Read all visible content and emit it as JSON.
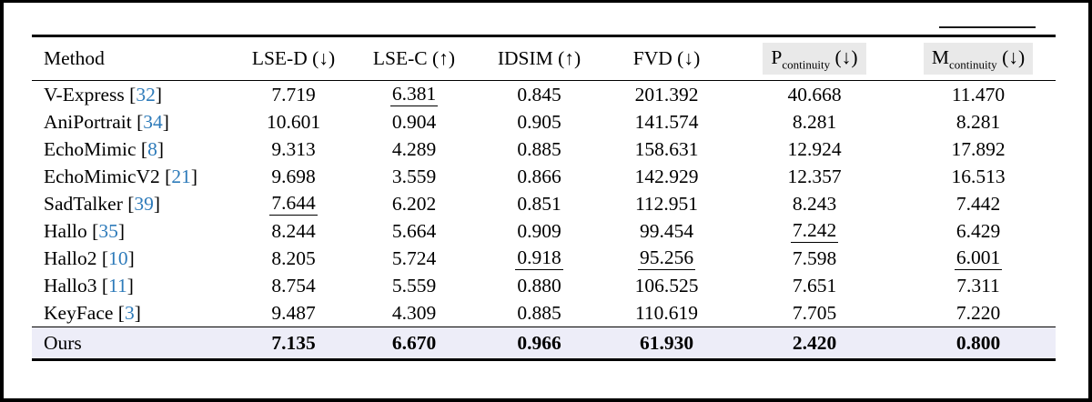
{
  "table": {
    "colors": {
      "citation": "#2e7bba",
      "header_highlight": "#e9e9e9",
      "ours_row_bg": "#ededf8",
      "rule": "#000000"
    },
    "header": {
      "method_label": "Method",
      "columns": [
        {
          "id": "lse-d",
          "base": "LSE-D",
          "sub": "",
          "dir": "↓",
          "highlight": false
        },
        {
          "id": "lse-c",
          "base": "LSE-C",
          "sub": "",
          "dir": "↑",
          "highlight": false
        },
        {
          "id": "idsim",
          "base": "IDSIM",
          "sub": "",
          "dir": "↑",
          "highlight": false
        },
        {
          "id": "fvd",
          "base": "FVD",
          "sub": "",
          "dir": "↓",
          "highlight": false
        },
        {
          "id": "p-continuity",
          "base": "P",
          "sub": "continuity",
          "dir": "↓",
          "highlight": true
        },
        {
          "id": "m-continuity",
          "base": "M",
          "sub": "continuity",
          "dir": "↓",
          "highlight": true
        }
      ]
    },
    "rows": [
      {
        "method": "V-Express",
        "cite": "32",
        "highlight": false,
        "values": [
          {
            "v": "7.719",
            "u": false
          },
          {
            "v": "6.381",
            "u": true
          },
          {
            "v": "0.845",
            "u": false
          },
          {
            "v": "201.392",
            "u": false
          },
          {
            "v": "40.668",
            "u": false
          },
          {
            "v": "11.470",
            "u": false
          }
        ]
      },
      {
        "method": "AniPortrait",
        "cite": "34",
        "highlight": false,
        "values": [
          {
            "v": "10.601",
            "u": false
          },
          {
            "v": "0.904",
            "u": false
          },
          {
            "v": "0.905",
            "u": false
          },
          {
            "v": "141.574",
            "u": false
          },
          {
            "v": "8.281",
            "u": false
          },
          {
            "v": "8.281",
            "u": false
          }
        ]
      },
      {
        "method": "EchoMimic",
        "cite": "8",
        "highlight": false,
        "values": [
          {
            "v": "9.313",
            "u": false
          },
          {
            "v": "4.289",
            "u": false
          },
          {
            "v": "0.885",
            "u": false
          },
          {
            "v": "158.631",
            "u": false
          },
          {
            "v": "12.924",
            "u": false
          },
          {
            "v": "17.892",
            "u": false
          }
        ]
      },
      {
        "method": "EchoMimicV2",
        "cite": "21",
        "highlight": false,
        "values": [
          {
            "v": "9.698",
            "u": false
          },
          {
            "v": "3.559",
            "u": false
          },
          {
            "v": "0.866",
            "u": false
          },
          {
            "v": "142.929",
            "u": false
          },
          {
            "v": "12.357",
            "u": false
          },
          {
            "v": "16.513",
            "u": false
          }
        ]
      },
      {
        "method": "SadTalker",
        "cite": "39",
        "highlight": false,
        "values": [
          {
            "v": "7.644",
            "u": true
          },
          {
            "v": "6.202",
            "u": false
          },
          {
            "v": "0.851",
            "u": false
          },
          {
            "v": "112.951",
            "u": false
          },
          {
            "v": "8.243",
            "u": false
          },
          {
            "v": "7.442",
            "u": false
          }
        ]
      },
      {
        "method": "Hallo",
        "cite": "35",
        "highlight": false,
        "values": [
          {
            "v": "8.244",
            "u": false
          },
          {
            "v": "5.664",
            "u": false
          },
          {
            "v": "0.909",
            "u": false
          },
          {
            "v": "99.454",
            "u": false
          },
          {
            "v": "7.242",
            "u": true
          },
          {
            "v": "6.429",
            "u": false
          }
        ]
      },
      {
        "method": "Hallo2",
        "cite": "10",
        "highlight": false,
        "values": [
          {
            "v": "8.205",
            "u": false
          },
          {
            "v": "5.724",
            "u": false
          },
          {
            "v": "0.918",
            "u": true
          },
          {
            "v": "95.256",
            "u": true
          },
          {
            "v": "7.598",
            "u": false
          },
          {
            "v": "6.001",
            "u": true
          }
        ]
      },
      {
        "method": "Hallo3",
        "cite": "11",
        "highlight": false,
        "values": [
          {
            "v": "8.754",
            "u": false
          },
          {
            "v": "5.559",
            "u": false
          },
          {
            "v": "0.880",
            "u": false
          },
          {
            "v": "106.525",
            "u": false
          },
          {
            "v": "7.651",
            "u": false
          },
          {
            "v": "7.311",
            "u": false
          }
        ]
      },
      {
        "method": "KeyFace",
        "cite": "3",
        "highlight": false,
        "values": [
          {
            "v": "9.487",
            "u": false
          },
          {
            "v": "4.309",
            "u": false
          },
          {
            "v": "0.885",
            "u": false
          },
          {
            "v": "110.619",
            "u": false
          },
          {
            "v": "7.705",
            "u": false
          },
          {
            "v": "7.220",
            "u": false
          }
        ]
      },
      {
        "method": "Ours",
        "cite": null,
        "highlight": true,
        "values": [
          {
            "v": "7.135",
            "u": false
          },
          {
            "v": "6.670",
            "u": false
          },
          {
            "v": "0.966",
            "u": false
          },
          {
            "v": "61.930",
            "u": false
          },
          {
            "v": "2.420",
            "u": false
          },
          {
            "v": "0.800",
            "u": false
          }
        ]
      }
    ]
  }
}
